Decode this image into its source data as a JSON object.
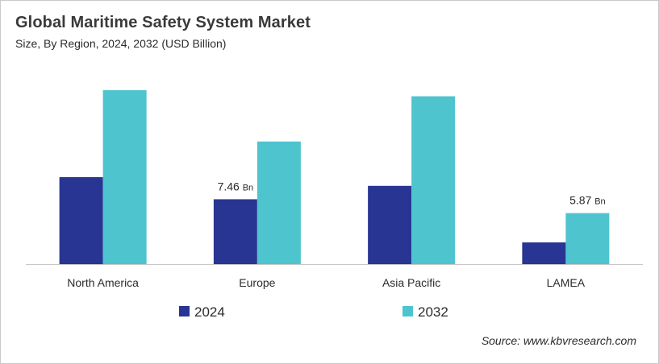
{
  "header": {
    "title": "Global Maritime Safety System Market",
    "subtitle": "Size, By Region, 2024, 2032 (USD Billion)"
  },
  "footer": {
    "source": "Source: www.kbvresearch.com"
  },
  "colors": {
    "series_2024": "#283593",
    "series_2032": "#4ec4cf",
    "axis": "#c8c8c8",
    "text": "#2b2b2b"
  },
  "chart_data": {
    "type": "bar",
    "categories": [
      "North America",
      "Europe",
      "Asia Pacific",
      "LAMEA"
    ],
    "series": [
      {
        "name": "2024",
        "values": [
          10.0,
          7.46,
          9.0,
          2.5
        ]
      },
      {
        "name": "2032",
        "values": [
          20.0,
          14.1,
          19.3,
          5.87
        ]
      }
    ],
    "data_labels": [
      {
        "series": 0,
        "category": 1,
        "text": "7.46",
        "unit": "Bn"
      },
      {
        "series": 1,
        "category": 3,
        "text": "5.87",
        "unit": "Bn"
      }
    ],
    "ylim": [
      0,
      20.0
    ],
    "grid": false,
    "legend_position": "bottom-center",
    "xlabel": "",
    "ylabel": ""
  }
}
